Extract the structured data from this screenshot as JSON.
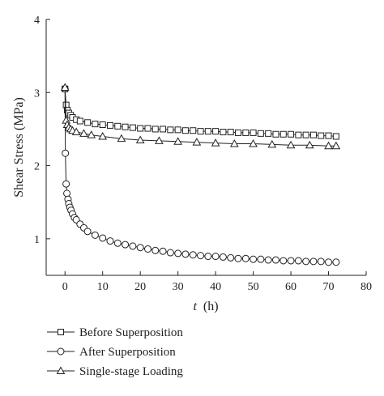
{
  "chart_data": {
    "type": "line",
    "title": "",
    "xlabel_var": "t",
    "xlabel_unit": "(h)",
    "ylabel": "Shear Stress (MPa)",
    "xlim": [
      -5,
      80
    ],
    "ylim": [
      0.5,
      4
    ],
    "x_ticks": [
      0,
      10,
      20,
      30,
      40,
      50,
      60,
      70,
      80
    ],
    "y_ticks": [
      1,
      2,
      3,
      4
    ],
    "grid": false,
    "legend_position": "bottom",
    "series": [
      {
        "name": "Before Superposition",
        "marker": "square",
        "x": [
          0,
          0.3,
          0.6,
          1,
          1.5,
          2,
          3,
          4,
          6,
          8,
          10,
          12,
          14,
          16,
          18,
          20,
          22,
          24,
          26,
          28,
          30,
          32,
          34,
          36,
          38,
          40,
          42,
          44,
          46,
          48,
          50,
          52,
          54,
          56,
          58,
          60,
          62,
          64,
          66,
          68,
          70,
          72
        ],
        "y": [
          3.05,
          2.83,
          2.76,
          2.72,
          2.69,
          2.66,
          2.63,
          2.61,
          2.59,
          2.57,
          2.56,
          2.55,
          2.54,
          2.53,
          2.52,
          2.51,
          2.51,
          2.5,
          2.5,
          2.49,
          2.49,
          2.48,
          2.48,
          2.47,
          2.47,
          2.47,
          2.46,
          2.46,
          2.45,
          2.45,
          2.45,
          2.44,
          2.44,
          2.43,
          2.43,
          2.43,
          2.42,
          2.42,
          2.42,
          2.41,
          2.41,
          2.4
        ]
      },
      {
        "name": "After Superposition",
        "marker": "circle",
        "x": [
          0,
          0.1,
          0.3,
          0.5,
          0.8,
          1,
          1.3,
          1.6,
          2,
          2.5,
          3,
          4,
          5,
          6,
          8,
          10,
          12,
          14,
          16,
          18,
          20,
          22,
          24,
          26,
          28,
          30,
          32,
          34,
          36,
          38,
          40,
          42,
          44,
          46,
          48,
          50,
          52,
          54,
          56,
          58,
          60,
          62,
          64,
          66,
          68,
          70,
          72
        ],
        "y": [
          3.05,
          2.17,
          1.75,
          1.62,
          1.54,
          1.48,
          1.43,
          1.39,
          1.34,
          1.29,
          1.26,
          1.2,
          1.15,
          1.1,
          1.05,
          1.01,
          0.97,
          0.94,
          0.92,
          0.9,
          0.88,
          0.86,
          0.84,
          0.83,
          0.81,
          0.8,
          0.79,
          0.78,
          0.77,
          0.76,
          0.76,
          0.75,
          0.74,
          0.73,
          0.73,
          0.72,
          0.72,
          0.71,
          0.71,
          0.7,
          0.7,
          0.7,
          0.69,
          0.69,
          0.69,
          0.68,
          0.68
        ]
      },
      {
        "name": "Single-stage Loading",
        "marker": "triangle",
        "x": [
          0,
          0.3,
          0.6,
          1,
          1.5,
          2,
          3,
          5,
          7,
          10,
          15,
          20,
          25,
          30,
          35,
          40,
          45,
          50,
          55,
          60,
          65,
          70,
          72
        ],
        "y": [
          3.07,
          2.62,
          2.56,
          2.52,
          2.5,
          2.48,
          2.46,
          2.44,
          2.42,
          2.4,
          2.37,
          2.35,
          2.34,
          2.33,
          2.32,
          2.31,
          2.3,
          2.3,
          2.29,
          2.28,
          2.28,
          2.27,
          2.27
        ]
      }
    ]
  },
  "colors": {
    "ink": "#222222",
    "marker_fill": "#ffffff"
  }
}
